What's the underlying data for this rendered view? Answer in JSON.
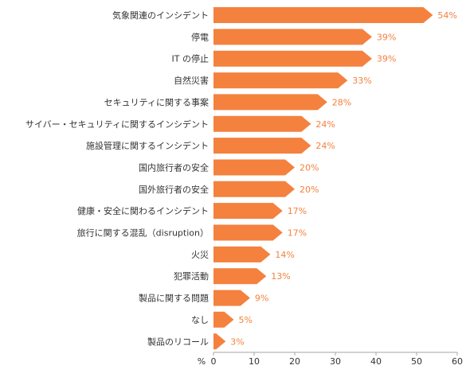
{
  "chart_data": {
    "type": "bar",
    "orientation": "horizontal",
    "categories": [
      "気象関連のインシデント",
      "停電",
      "IT の停止",
      "自然災害",
      "セキュリティに関する事案",
      "サイバー・セキュリティに関するインシデント",
      "施設管理に関するインシデント",
      "国内旅行者の安全",
      "国外旅行者の安全",
      "健康・安全に関わるインシデント",
      "旅行に関する混乱（disruption）",
      "火災",
      "犯罪活動",
      "製品に関する問題",
      "なし",
      "製品のリコール"
    ],
    "values": [
      54,
      39,
      39,
      33,
      28,
      24,
      24,
      20,
      20,
      17,
      17,
      14,
      13,
      9,
      5,
      3
    ],
    "value_labels": [
      "54%",
      "39%",
      "39%",
      "33%",
      "28%",
      "24%",
      "24%",
      "20%",
      "20%",
      "17%",
      "17%",
      "14%",
      "13%",
      "9%",
      "5%",
      "3%"
    ],
    "xlim": [
      0,
      60
    ],
    "xticks": [
      "0",
      "10",
      "20",
      "30",
      "40",
      "50",
      "60"
    ],
    "xticks_values": [
      0,
      10,
      20,
      30,
      40,
      50,
      60
    ],
    "x_unit_label": "%",
    "grid": false,
    "bar_color": "#F4813E",
    "label_color": "#F4813E",
    "text_color": "#333333",
    "axis_color": "#A6A6A6",
    "bar_shape": "arrow"
  }
}
